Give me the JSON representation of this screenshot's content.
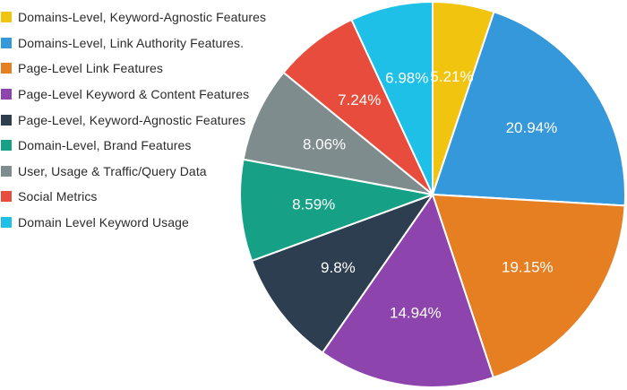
{
  "chart_data": {
    "type": "pie",
    "categories": [
      "Domains-Level, Keyword-Agnostic Features",
      "Domains-Level, Link Authority Features.",
      "Page-Level Link Features",
      "Page-Level Keyword & Content Features",
      "Page-Level, Keyword-Agnostic Features",
      "Domain-Level, Brand Features",
      "User, Usage & Traffic/Query Data",
      "Social Metrics",
      "Domain Level Keyword Usage"
    ],
    "values": [
      5.21,
      20.94,
      19.15,
      14.94,
      9.8,
      8.59,
      8.06,
      7.24,
      6.98
    ],
    "value_labels": [
      "5.21%",
      "20.94%",
      "19.15%",
      "14.94%",
      "9.8%",
      "8.59%",
      "8.06%",
      "7.24%",
      "6.98%"
    ],
    "colors": [
      "#f1c40f",
      "#3498db",
      "#e67e22",
      "#8e44ad",
      "#2c3e50",
      "#16a085",
      "#7f8c8d",
      "#e74c3c",
      "#1ec0e8"
    ],
    "legend_position": "left",
    "start": "top",
    "direction": "clockwise"
  }
}
